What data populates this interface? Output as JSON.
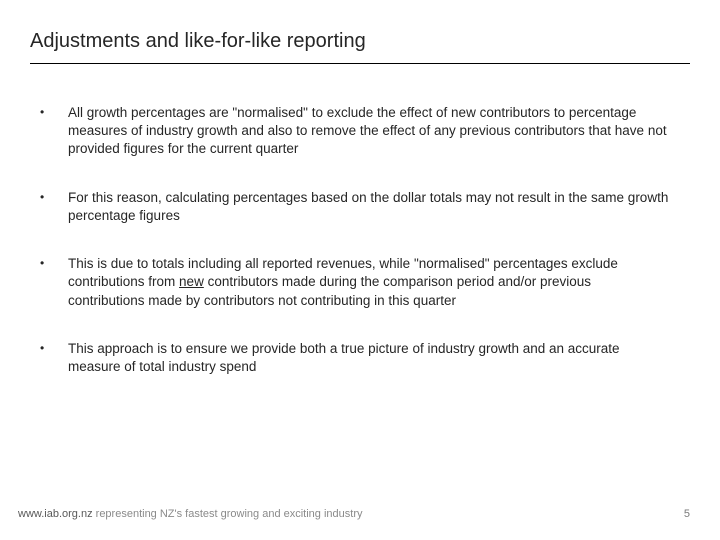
{
  "title": "Adjustments and like-for-like reporting",
  "bullets": {
    "b0": {
      "mark": "•",
      "text": "All growth percentages are \"normalised\" to exclude the effect of new contributors to percentage measures of industry growth and also to remove the effect of any previous contributors that have not provided figures for the current quarter"
    },
    "b1": {
      "mark": "•",
      "text": "For this reason, calculating percentages based on the dollar totals may not result in the same growth percentage figures"
    },
    "b2": {
      "mark": "•",
      "pre": "This is due to totals including all reported revenues, while \"normalised\" percentages exclude contributions from ",
      "u": "new",
      "post": " contributors made during the comparison period and/or previous contributions made by contributors not contributing in this quarter"
    },
    "b3": {
      "mark": "•",
      "text": "This approach is to ensure we provide both a true picture of industry growth and an accurate measure of total industry spend"
    }
  },
  "footer": {
    "url": "www.iab.org.nz",
    "tagline": " representing NZ's fastest growing and exciting industry",
    "page": "5"
  },
  "colors": {
    "text": "#262626",
    "border": "#000000",
    "footer_url": "#595959",
    "footer_tag": "#8a8a8a",
    "footer_page": "#7a7a7a",
    "background": "#ffffff"
  },
  "typography": {
    "title_fontsize": 20,
    "body_fontsize": 13.5,
    "footer_fontsize": 11,
    "font_family": "Arial"
  }
}
